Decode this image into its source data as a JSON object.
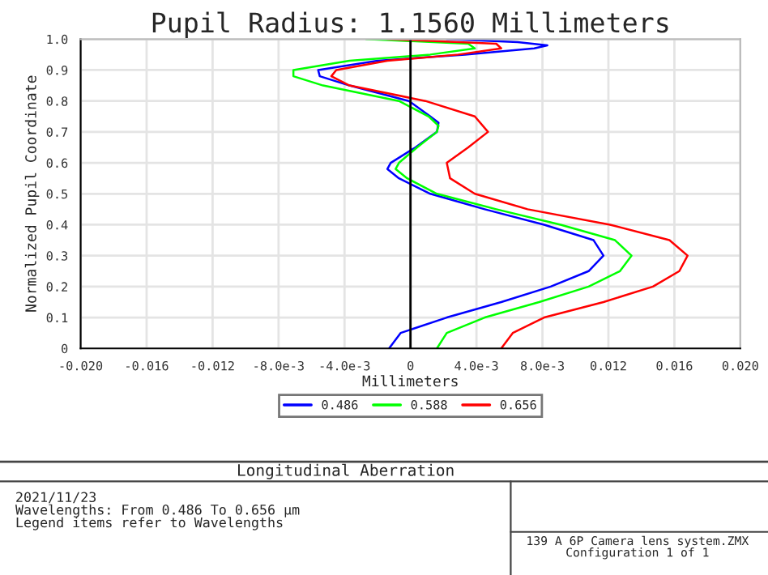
{
  "chart_data": {
    "type": "line",
    "title": "Pupil Radius: 1.1560 Millimeters",
    "xlabel": "Millimeters",
    "ylabel": "Normalized Pupil Coordinate",
    "series": [
      {
        "name": "0.486",
        "color": "#0000ff",
        "x": [
          -0.0013,
          -0.0006,
          0.0022,
          0.0055,
          0.0085,
          0.0108,
          0.0117,
          0.0111,
          0.0081,
          0.0045,
          0.0012,
          -0.0007,
          -0.0014,
          -0.0012,
          0.0003,
          0.0016,
          0.0017,
          0.0012,
          -0.0001,
          -0.0037,
          -0.0055,
          -0.0056,
          -0.002,
          0.0033,
          0.0075,
          0.0083,
          0.0065,
          0.0022
        ],
        "values": [
          0,
          0.05,
          0.1,
          0.15,
          0.2,
          0.25,
          0.3,
          0.35,
          0.4,
          0.45,
          0.5,
          0.55,
          0.58,
          0.6,
          0.65,
          0.7,
          0.73,
          0.75,
          0.8,
          0.85,
          0.88,
          0.9,
          0.93,
          0.95,
          0.97,
          0.98,
          0.99,
          1.0
        ]
      },
      {
        "name": "0.588",
        "color": "#00ff00",
        "x": [
          0.0016,
          0.0022,
          0.0045,
          0.0078,
          0.0108,
          0.0127,
          0.0134,
          0.0124,
          0.0091,
          0.0052,
          0.0016,
          -0.0002,
          -0.0009,
          -0.0007,
          0.0004,
          0.0016,
          0.0017,
          0.0011,
          -0.0007,
          -0.0053,
          -0.0071,
          -0.0071,
          -0.0037,
          0.0012,
          0.0039,
          0.0035,
          -0.0027
        ],
        "values": [
          0,
          0.05,
          0.1,
          0.15,
          0.2,
          0.25,
          0.3,
          0.35,
          0.4,
          0.45,
          0.5,
          0.55,
          0.58,
          0.6,
          0.65,
          0.7,
          0.72,
          0.75,
          0.8,
          0.85,
          0.88,
          0.9,
          0.93,
          0.95,
          0.97,
          0.985,
          1.0
        ]
      },
      {
        "name": "0.656",
        "color": "#ff0000",
        "x": [
          0.0055,
          0.0062,
          0.0081,
          0.0117,
          0.0147,
          0.0163,
          0.0168,
          0.0157,
          0.0121,
          0.0071,
          0.0039,
          0.0024,
          0.0022,
          0.0035,
          0.0047,
          0.0039,
          0.0009,
          -0.0037,
          -0.0048,
          -0.0045,
          -0.0014,
          0.0029,
          0.0055,
          0.0052,
          -0.0014
        ],
        "values": [
          0,
          0.05,
          0.1,
          0.15,
          0.2,
          0.25,
          0.3,
          0.35,
          0.4,
          0.45,
          0.5,
          0.55,
          0.6,
          0.65,
          0.7,
          0.75,
          0.8,
          0.85,
          0.88,
          0.9,
          0.93,
          0.95,
          0.97,
          0.985,
          1.0
        ]
      }
    ],
    "xlim": [
      -0.02,
      0.02
    ],
    "xticks": [
      {
        "value": -0.02,
        "label": "-0.020"
      },
      {
        "value": -0.016,
        "label": "-0.016"
      },
      {
        "value": -0.012,
        "label": "-0.012"
      },
      {
        "value": -0.008,
        "label": "-8.0e-3"
      },
      {
        "value": -0.004,
        "label": "-4.0e-3"
      },
      0,
      {
        "value": 0.004,
        "label": "4.0e-3"
      },
      {
        "value": 0.008,
        "label": "8.0e-3"
      },
      0.012,
      0.016,
      {
        "value": 0.02,
        "label": "0.020"
      }
    ],
    "ylim": [
      0,
      1
    ],
    "yticks": [
      0,
      0.1,
      0.2,
      0.3,
      0.4,
      0.5,
      0.6,
      0.7,
      0.8,
      0.9,
      {
        "value": 1,
        "label": "1.0"
      }
    ],
    "ref_lines": [
      {
        "axis": "x",
        "value": 0,
        "color": "#000000"
      }
    ],
    "grid": true,
    "legend": "bottom",
    "annotations": [
      "Longitudinal Aberration",
      "2021/11/23",
      "Wavelengths: From 0.486 To 0.656 µm",
      "Legend items refer to Wavelengths",
      "139 A 6P Camera lens system.ZMX",
      "Configuration 1 of 1"
    ]
  }
}
